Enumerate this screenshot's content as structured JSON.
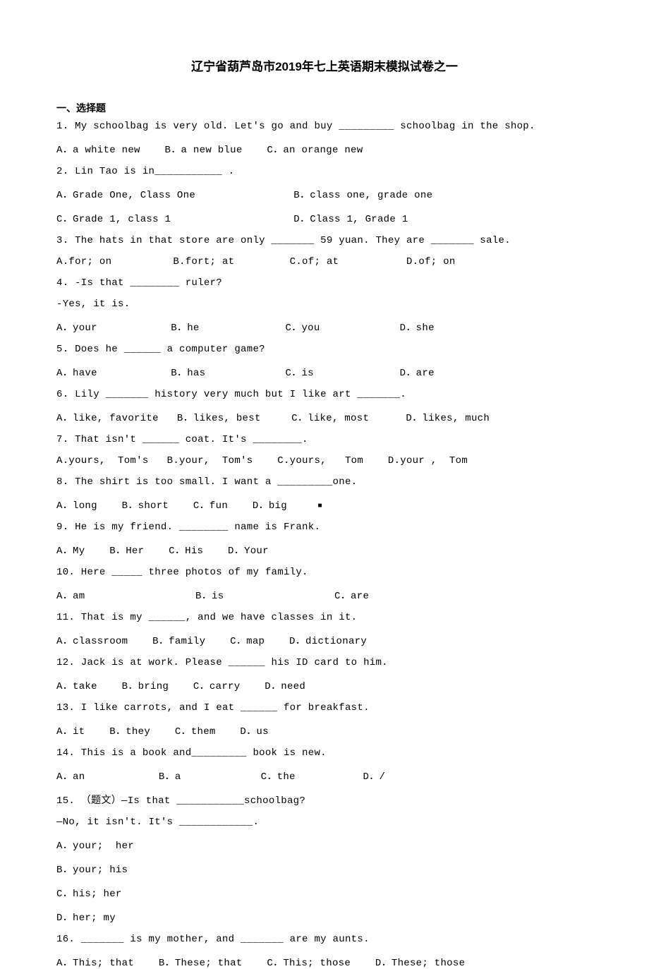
{
  "title": "辽宁省葫芦岛市2019年七上英语期末模拟试卷之一",
  "section_heading": "一、选择题",
  "lines": [
    "1. My schoolbag is very old. Let's go and buy _________ schoolbag in the shop.",
    "A．a white new    B．a new blue    C．an orange new",
    "2. Lin Tao is in___________ .",
    "A．Grade One, Class One                B．class one, grade one",
    "C．Grade 1, class 1                    D．Class 1, Grade 1",
    "3. The hats in that store are only _______ 59 yuan. They are _______ sale.",
    "A.for; on          B.fort; at         C.of; at           D.of; on",
    "4. -Is that ________ ruler?",
    "-Yes, it is.",
    "A．your            B．he              C．you             D．she",
    "5. Does he ______ a computer game?",
    "A．have            B．has             C．is              D．are",
    "6. Lily _______ history very much but I like art _______.",
    "A．like, favorite   B．likes, best     C．like, most      D．likes, much",
    "7. That isn't ______ coat. It's ________.",
    "A.yours,  Tom's   B.your,  Tom's    C.yours,   Tom    D.your ,  Tom",
    "8. The shirt is too small. I want a _________one.",
    "A．long    B．short    C．fun    D．big     ",
    "9. He is my friend. ________ name is Frank.",
    "A．My    B．Her    C．His    D．Your",
    "10. Here _____ three photos of my family.",
    "A．am                  B．is                  C．are",
    "11. That is my ______, and we have classes in it.",
    "A．classroom    B．family    C．map    D．dictionary",
    "12. Jack is at work. Please ______ his ID card to him.",
    "A．take    B．bring    C．carry    D．need",
    "13. I like carrots, and I eat ______ for breakfast.",
    "A．it    B．they    C．them    D．us",
    "14. This is a book and_________ book is new.",
    "A．an            B．a             C．the           D．/",
    "15. （题文）—Is that ___________schoolbag?",
    "—No, it isn't. It's ____________.",
    "A．your;  her",
    "B．your; his",
    "C．his; her",
    "D．her; my",
    "16. _______ is my mother, and _______ are my aunts.",
    "A．This; that    B．These; that    C．This; those    D．These; those"
  ]
}
